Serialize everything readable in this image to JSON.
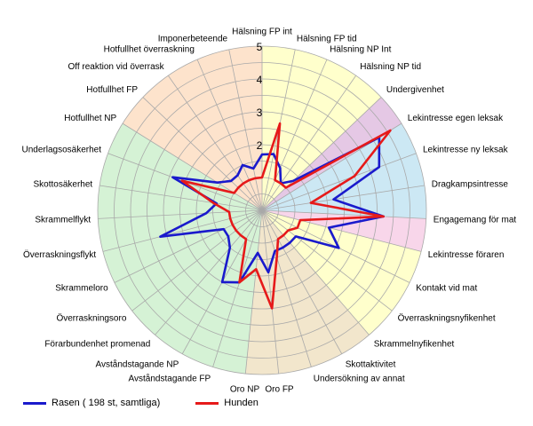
{
  "chart_data": {
    "type": "radar",
    "rmax": 5,
    "ticks": [
      2,
      3,
      4,
      5
    ],
    "categories": [
      "Hälsning FP int",
      "Hälsning FP tid",
      "Hälsning NP Int",
      "Hälsning NP tid",
      "Undergivenhet",
      "Lekintresse egen leksak",
      "Lekintresse ny leksak",
      "Dragkampsintresse",
      "Engagemang för mat",
      "Lekintresse föraren",
      "Kontakt vid mat",
      "Överraskningsnyfikenhet",
      "Skrammelnyfikenhet",
      "Skottaktivitet",
      "Undersökning av annat",
      "Oro FP",
      "Oro NP",
      "Avståndstagande FP",
      "Avståndstagande NP",
      "Förarbundenhet promenad",
      "Överraskningsoro",
      "Skrammeloro",
      "Överraskningsflykt",
      "Skrammelflykt",
      "Skottosäkerhet",
      "Underlagsosäkerhet",
      "Hotfullhet NP",
      "Hotfullhet FP",
      "Off reaktion vid överrask",
      "Hotfullhet överraskning",
      "Imponerbeteende"
    ],
    "sectors": [
      {
        "from": 0,
        "to": 4,
        "color": "#ffffcc"
      },
      {
        "from": 4,
        "to": 5,
        "color": "#e5c8e5"
      },
      {
        "from": 5,
        "to": 8,
        "color": "#cce8f4"
      },
      {
        "from": 8,
        "to": 9,
        "color": "#f8d6ea"
      },
      {
        "from": 9,
        "to": 12,
        "color": "#ffffcc"
      },
      {
        "from": 12,
        "to": 16,
        "color": "#f2e6cc"
      },
      {
        "from": 16,
        "to": 26,
        "color": "#d5f2d5"
      },
      {
        "from": 26,
        "to": 31,
        "color": "#fde3cc"
      }
    ],
    "series": [
      {
        "name": "Rasen ( 198 st, samtliga)",
        "color": "#1a1acc",
        "values": [
          1.7,
          1.75,
          1.4,
          1.0,
          1.3,
          4.2,
          3.8,
          2.2,
          3.7,
          2.1,
          2.6,
          1.3,
          1.3,
          1.3,
          1.3,
          1.9,
          1.3,
          2.3,
          2.5,
          1.5,
          1.3,
          1.3,
          3.2,
          1.7,
          1.4,
          2.9,
          1.6,
          1.3,
          1.3,
          1.5,
          1.3
        ]
      },
      {
        "name": "Hunden",
        "color": "#e61a1a",
        "values": [
          1.0,
          2.7,
          1.0,
          1.0,
          1.0,
          4.6,
          3.0,
          1.5,
          3.7,
          1.2,
          1.2,
          1.0,
          1.0,
          1.0,
          1.5,
          3.0,
          1.8,
          2.3,
          1.0,
          1.0,
          1.0,
          1.0,
          1.0,
          1.0,
          1.5,
          2.6,
          1.0,
          1.0,
          1.0,
          1.0,
          1.0
        ]
      }
    ]
  }
}
